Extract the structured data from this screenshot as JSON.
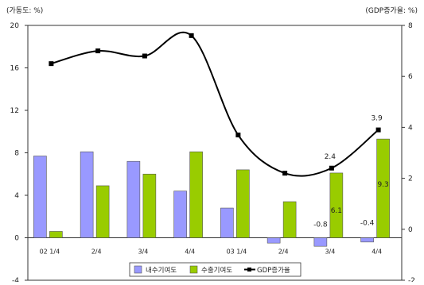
{
  "chart_data": {
    "type": "bar",
    "left_unit_label": "(가동도: %)",
    "right_unit_label": "(GDP증가율: %)",
    "categories": [
      "02 1/4",
      "2/4",
      "3/4",
      "4/4",
      "03 1/4",
      "2/4",
      "3/4",
      "4/4"
    ],
    "left_axis": {
      "min": -4,
      "max": 20,
      "ticks": [
        -4,
        0,
        4,
        8,
        12,
        16,
        20
      ]
    },
    "right_axis": {
      "min": -2,
      "max": 8,
      "ticks": [
        -2,
        0,
        2,
        4,
        6,
        8
      ]
    },
    "series": [
      {
        "name": "내수기여도",
        "type": "bar",
        "axis": "left",
        "color": "#9999ff",
        "values": [
          7.7,
          8.1,
          7.2,
          4.4,
          2.8,
          -0.5,
          -0.8,
          -0.4
        ]
      },
      {
        "name": "수출기여도",
        "type": "bar",
        "axis": "left",
        "color": "#99cc00",
        "values": [
          0.6,
          4.9,
          6.0,
          8.1,
          6.4,
          3.4,
          6.1,
          9.3
        ]
      },
      {
        "name": "GDP증가율",
        "type": "line",
        "axis": "right",
        "color": "#000000",
        "values": [
          6.5,
          7.0,
          6.8,
          7.6,
          3.7,
          2.2,
          2.4,
          3.9
        ]
      }
    ],
    "data_labels": [
      {
        "series": "수출기여도",
        "index": 6,
        "text": "6.1"
      },
      {
        "series": "수출기여도",
        "index": 7,
        "text": "9.3"
      },
      {
        "series": "내수기여도",
        "index": 6,
        "text": "-0.8"
      },
      {
        "series": "내수기여도",
        "index": 7,
        "text": "-0.4"
      },
      {
        "series": "GDP증가율",
        "index": 6,
        "text": "2.4"
      },
      {
        "series": "GDP증가율",
        "index": 7,
        "text": "3.9"
      }
    ],
    "grid": false,
    "legend_position": "bottom"
  }
}
